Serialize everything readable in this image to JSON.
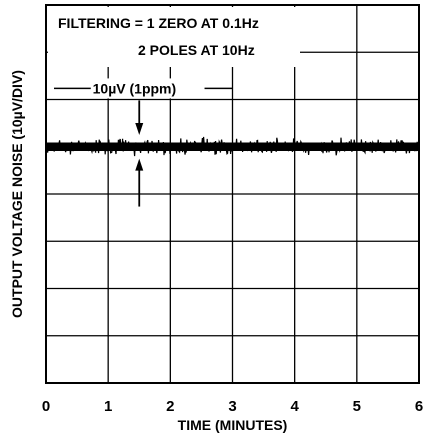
{
  "chart_data": {
    "type": "line",
    "title": "",
    "xlabel": "TIME (MINUTES)",
    "ylabel": "OUTPUT VOLTAGE NOISE (10µV/DIV)",
    "xlim": [
      0,
      6
    ],
    "x_ticks": [
      "0",
      "1",
      "2",
      "3",
      "4",
      "5",
      "6"
    ],
    "y_divisions": 8,
    "y_unit_per_div_uV": 10,
    "grid": true,
    "annotations": {
      "filtering_line1": "FILTERING = 1 ZERO AT 0.1Hz",
      "filtering_line2": "2 POLES AT 10Hz",
      "scale_marker": "10µV (1ppm)"
    },
    "series": [
      {
        "color": "#000000",
        "center_div_from_top": 3.0,
        "peak_to_peak_uV": 4.0
      }
    ]
  }
}
